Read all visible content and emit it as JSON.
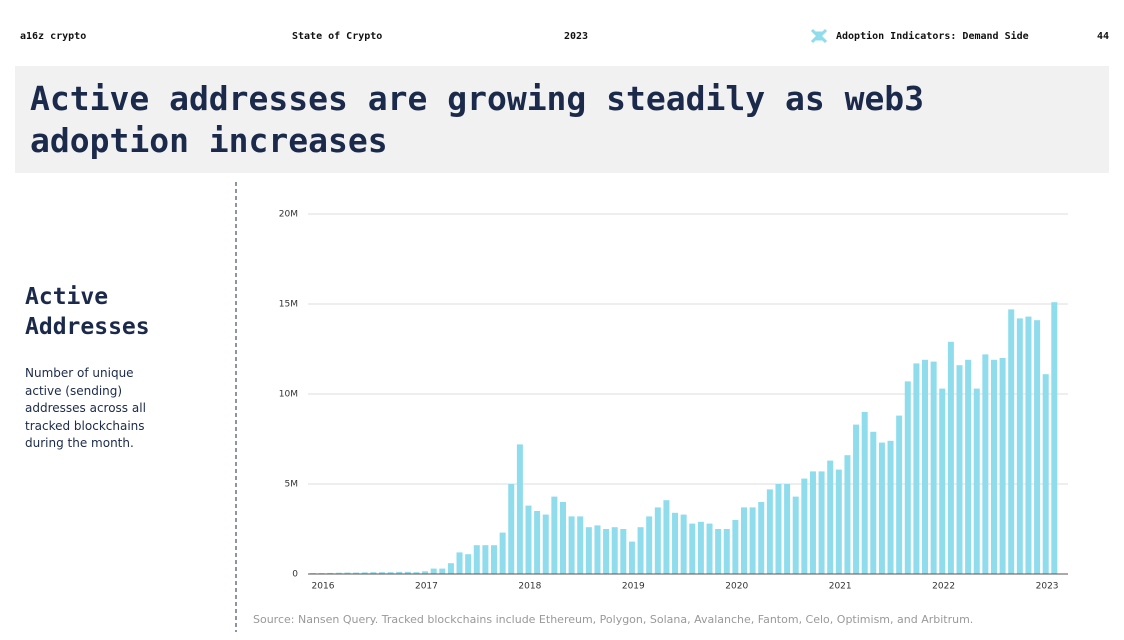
{
  "header": {
    "brand": "a16z crypto",
    "report": "State of Crypto",
    "year": "2023",
    "section": "Adoption Indicators: Demand Side",
    "page": "44"
  },
  "title": "Active addresses are growing steadily as web3 adoption increases",
  "sidebar": {
    "heading": "Active Addresses",
    "description": "Number of unique active (sending) addresses across all tracked blockchains during the month."
  },
  "source": "Source: Nansen Query. Tracked blockchains include Ethereum, Polygon, Solana, Avalanche, Fantom, Celo, Optimism, and Arbitrum.",
  "chart_data": {
    "type": "bar",
    "color": "#8fdcec",
    "grid": true,
    "categories": [
      "2016",
      null,
      null,
      null,
      null,
      null,
      null,
      null,
      null,
      null,
      null,
      null,
      "2017",
      null,
      null,
      null,
      null,
      null,
      null,
      null,
      null,
      null,
      null,
      null,
      "2018",
      null,
      null,
      null,
      null,
      null,
      null,
      null,
      null,
      null,
      null,
      null,
      "2019",
      null,
      null,
      null,
      null,
      null,
      null,
      null,
      null,
      null,
      null,
      null,
      "2020",
      null,
      null,
      null,
      null,
      null,
      null,
      null,
      null,
      null,
      null,
      null,
      "2021",
      null,
      null,
      null,
      null,
      null,
      null,
      null,
      null,
      null,
      null,
      null,
      "2022",
      null,
      null,
      null,
      null,
      null,
      null,
      null,
      null,
      null,
      null,
      null,
      "2023",
      null,
      null
    ],
    "values": [
      50000,
      50000,
      60000,
      70000,
      80000,
      80000,
      90000,
      100000,
      100000,
      100000,
      120000,
      120000,
      100000,
      150000,
      300000,
      300000,
      600000,
      1200000,
      1100000,
      1600000,
      1600000,
      1600000,
      2300000,
      5000000,
      7200000,
      3800000,
      3500000,
      3300000,
      4300000,
      4000000,
      3200000,
      3200000,
      2600000,
      2700000,
      2500000,
      2600000,
      2500000,
      1800000,
      2600000,
      3200000,
      3700000,
      4100000,
      3400000,
      3300000,
      2800000,
      2900000,
      2800000,
      2500000,
      2500000,
      3000000,
      3700000,
      3700000,
      4000000,
      4700000,
      5000000,
      5000000,
      4300000,
      5300000,
      5700000,
      5700000,
      6300000,
      5800000,
      6600000,
      8300000,
      9000000,
      7900000,
      7300000,
      7400000,
      8800000,
      10700000,
      11700000,
      11900000,
      11800000,
      10300000,
      12900000,
      11600000,
      11900000,
      10300000,
      12200000,
      11900000,
      12000000,
      14700000,
      14200000,
      14300000,
      14100000,
      11100000,
      15100000
    ],
    "ylim": [
      0,
      20000000
    ],
    "yticks": [
      0,
      {
        "value": 5000000,
        "label": "5M"
      },
      {
        "value": 10000000,
        "label": "10M"
      },
      {
        "value": 15000000,
        "label": "15M"
      },
      {
        "value": 20000000,
        "label": "20M"
      }
    ]
  }
}
